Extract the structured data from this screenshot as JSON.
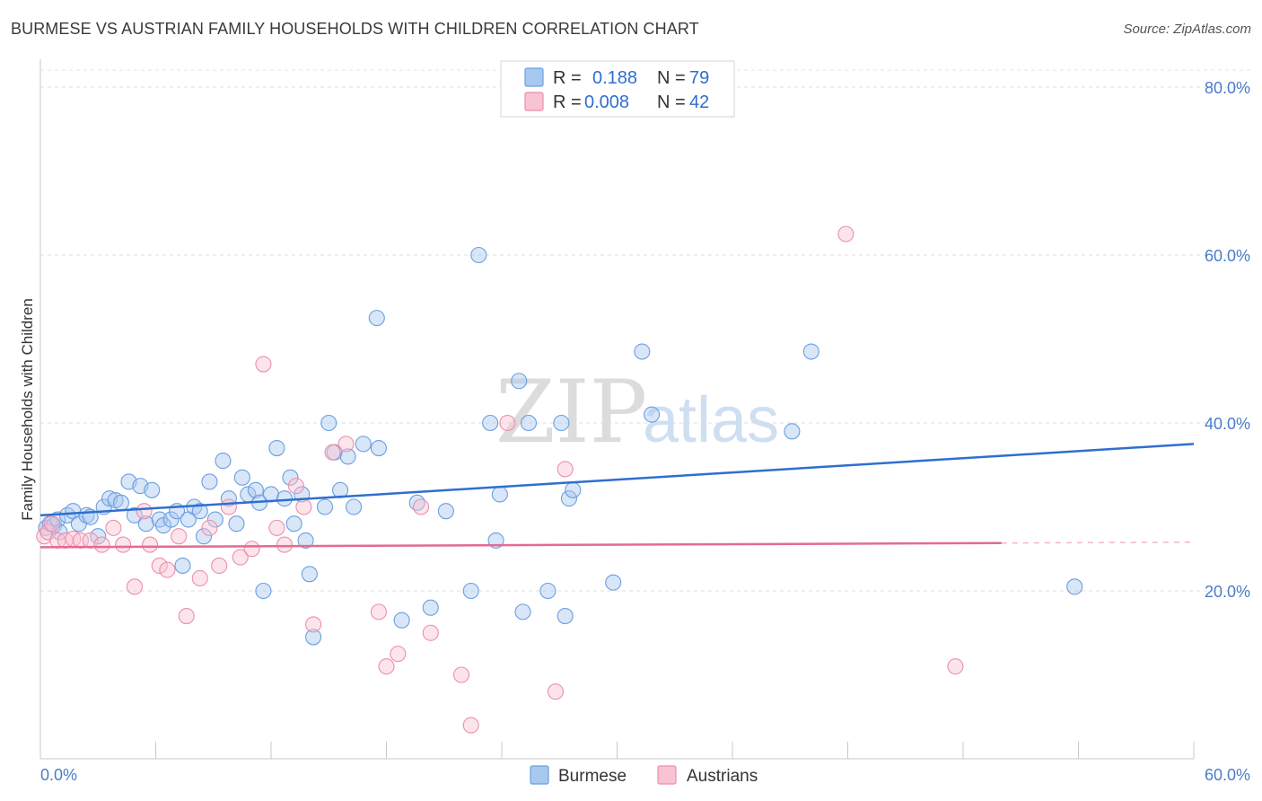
{
  "title": "BURMESE VS AUSTRIAN FAMILY HOUSEHOLDS WITH CHILDREN CORRELATION CHART",
  "source": "Source: ZipAtlas.com",
  "watermark": {
    "zip": "ZIP",
    "atlas": "atlas"
  },
  "legend": {
    "r_label": "R =",
    "n_label": "N =",
    "rows": [
      {
        "r": "0.188",
        "n": "79",
        "color": "#a9c8f0",
        "stroke": "#6a9fe0"
      },
      {
        "r": "0.008",
        "n": "42",
        "color": "#f8c3d2",
        "stroke": "#ec8fab"
      }
    ]
  },
  "bottom_legend": [
    "Burmese",
    "Austrians"
  ],
  "chart_data": {
    "type": "scatter",
    "title": "BURMESE VS AUSTRIAN FAMILY HOUSEHOLDS WITH CHILDREN CORRELATION CHART",
    "xlabel": "",
    "ylabel": "Family Households with Children",
    "xlim": [
      0,
      60
    ],
    "ylim": [
      0,
      80
    ],
    "x_tick_labels": [
      "0.0%",
      "60.0%"
    ],
    "y_tick_labels": [
      "20.0%",
      "40.0%",
      "60.0%",
      "80.0%"
    ],
    "y_ticks": [
      20,
      40,
      60,
      80
    ],
    "grid": true,
    "series": [
      {
        "name": "Burmese",
        "color": "#6a9fe0",
        "fill": "#a9c8f0",
        "trend_color": "#2f6fcd",
        "trend": {
          "x0": 0,
          "y0": 29.0,
          "x1": 60,
          "y1": 37.5
        },
        "points": [
          [
            0.3,
            27.5
          ],
          [
            0.5,
            28.0
          ],
          [
            0.7,
            27.8
          ],
          [
            0.9,
            28.5
          ],
          [
            1.0,
            27.0
          ],
          [
            1.4,
            29.0
          ],
          [
            1.7,
            29.5
          ],
          [
            2.0,
            28.0
          ],
          [
            2.4,
            29.0
          ],
          [
            2.6,
            28.8
          ],
          [
            3.0,
            26.5
          ],
          [
            3.3,
            30.0
          ],
          [
            3.6,
            31.0
          ],
          [
            3.9,
            30.8
          ],
          [
            4.2,
            30.5
          ],
          [
            4.6,
            33.0
          ],
          [
            4.9,
            29.0
          ],
          [
            5.2,
            32.5
          ],
          [
            5.5,
            28.0
          ],
          [
            5.8,
            32.0
          ],
          [
            6.2,
            28.5
          ],
          [
            6.4,
            27.8
          ],
          [
            6.8,
            28.5
          ],
          [
            7.1,
            29.5
          ],
          [
            7.4,
            23.0
          ],
          [
            7.7,
            28.5
          ],
          [
            8.0,
            30.0
          ],
          [
            8.3,
            29.5
          ],
          [
            8.5,
            26.5
          ],
          [
            8.8,
            33.0
          ],
          [
            9.1,
            28.5
          ],
          [
            9.5,
            35.5
          ],
          [
            9.8,
            31.0
          ],
          [
            10.2,
            28.0
          ],
          [
            10.5,
            33.5
          ],
          [
            10.8,
            31.5
          ],
          [
            11.2,
            32.0
          ],
          [
            11.4,
            30.5
          ],
          [
            11.6,
            20.0
          ],
          [
            12.0,
            31.5
          ],
          [
            12.3,
            37.0
          ],
          [
            12.7,
            31.0
          ],
          [
            13.0,
            33.5
          ],
          [
            13.2,
            28.0
          ],
          [
            13.6,
            31.5
          ],
          [
            13.8,
            26.0
          ],
          [
            14.0,
            22.0
          ],
          [
            14.2,
            14.5
          ],
          [
            14.8,
            30.0
          ],
          [
            15.0,
            40.0
          ],
          [
            15.3,
            36.5
          ],
          [
            15.6,
            32.0
          ],
          [
            16.0,
            36.0
          ],
          [
            16.3,
            30.0
          ],
          [
            16.8,
            37.5
          ],
          [
            17.5,
            52.5
          ],
          [
            17.6,
            37.0
          ],
          [
            18.8,
            16.5
          ],
          [
            19.6,
            30.5
          ],
          [
            20.3,
            18.0
          ],
          [
            21.1,
            29.5
          ],
          [
            22.4,
            20.0
          ],
          [
            22.8,
            60.0
          ],
          [
            23.4,
            40.0
          ],
          [
            23.7,
            26.0
          ],
          [
            23.9,
            31.5
          ],
          [
            24.9,
            45.0
          ],
          [
            25.1,
            17.5
          ],
          [
            25.4,
            40.0
          ],
          [
            26.4,
            20.0
          ],
          [
            27.1,
            40.0
          ],
          [
            27.3,
            17.0
          ],
          [
            27.5,
            31.0
          ],
          [
            27.7,
            32.0
          ],
          [
            29.8,
            21.0
          ],
          [
            31.3,
            48.5
          ],
          [
            31.8,
            41.0
          ],
          [
            39.1,
            39.0
          ],
          [
            40.1,
            48.5
          ],
          [
            53.8,
            20.5
          ]
        ]
      },
      {
        "name": "Austrians",
        "color": "#ec8fab",
        "fill": "#f8c3d2",
        "trend_color": "#e36b92",
        "trend": {
          "x0": 0,
          "y0": 25.2,
          "x1": 50,
          "y1": 25.7
        },
        "points": [
          [
            0.2,
            26.5
          ],
          [
            0.4,
            27.0
          ],
          [
            0.6,
            28.0
          ],
          [
            0.9,
            26.0
          ],
          [
            1.3,
            26.0
          ],
          [
            1.7,
            26.2
          ],
          [
            2.1,
            26.0
          ],
          [
            2.6,
            26.0
          ],
          [
            3.2,
            25.5
          ],
          [
            3.8,
            27.5
          ],
          [
            4.3,
            25.5
          ],
          [
            4.9,
            20.5
          ],
          [
            5.4,
            29.5
          ],
          [
            5.7,
            25.5
          ],
          [
            6.2,
            23.0
          ],
          [
            6.6,
            22.5
          ],
          [
            7.2,
            26.5
          ],
          [
            7.6,
            17.0
          ],
          [
            8.3,
            21.5
          ],
          [
            8.8,
            27.5
          ],
          [
            9.3,
            23.0
          ],
          [
            9.8,
            30.0
          ],
          [
            10.4,
            24.0
          ],
          [
            11.0,
            25.0
          ],
          [
            11.6,
            47.0
          ],
          [
            12.3,
            27.5
          ],
          [
            12.7,
            25.5
          ],
          [
            13.3,
            32.5
          ],
          [
            13.7,
            30.0
          ],
          [
            14.2,
            16.0
          ],
          [
            15.2,
            36.5
          ],
          [
            15.9,
            37.5
          ],
          [
            17.6,
            17.5
          ],
          [
            18.0,
            11.0
          ],
          [
            18.6,
            12.5
          ],
          [
            19.8,
            30.0
          ],
          [
            20.3,
            15.0
          ],
          [
            21.9,
            10.0
          ],
          [
            22.4,
            4.0
          ],
          [
            24.3,
            40.0
          ],
          [
            26.8,
            8.0
          ],
          [
            27.3,
            34.5
          ],
          [
            41.9,
            62.5
          ],
          [
            47.6,
            11.0
          ]
        ]
      }
    ]
  }
}
